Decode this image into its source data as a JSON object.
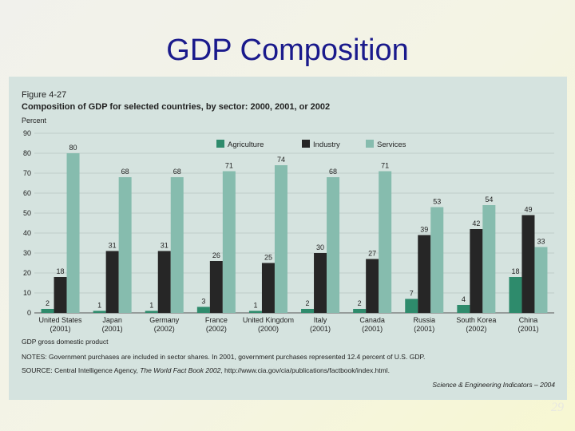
{
  "slide": {
    "title": "GDP Composition",
    "page_number": "29"
  },
  "figure": {
    "number": "Figure 4-27",
    "footnote_gdp": "GDP  gross domestic product",
    "notes": "NOTES: Government purchases are included in sector shares. In 2001, government purchases represented 12.4 percent of U.S. GDP.",
    "source_prefix": "SOURCE: Central Intelligence Agency, ",
    "source_title": "The World Fact Book 2002",
    "source_suffix": ", http://www.cia.gov/cia/publications/factbook/index.html.",
    "credit": "Science & Engineering Indicators – 2004"
  },
  "colors": {
    "agriculture": "#2e8b6c",
    "industry": "#262626",
    "services": "#86bcae",
    "title": "#1a1a8c",
    "panel": "#d5e3df"
  },
  "chart_data": {
    "type": "bar",
    "title": "Composition of GDP for selected countries, by sector: 2000, 2001, or 2002",
    "ylabel": "Percent",
    "xlabel": "",
    "ylim": [
      0,
      90
    ],
    "yticks": [
      0,
      10,
      20,
      30,
      40,
      50,
      60,
      70,
      80,
      90
    ],
    "grid": true,
    "legend_position": "top-right",
    "categories": [
      "United States",
      "Japan",
      "Germany",
      "France",
      "United Kingdom",
      "Italy",
      "Canada",
      "Russia",
      "South Korea",
      "China"
    ],
    "years": [
      "(2001)",
      "(2001)",
      "(2002)",
      "(2002)",
      "(2000)",
      "(2001)",
      "(2001)",
      "(2001)",
      "(2002)",
      "(2001)"
    ],
    "series": [
      {
        "name": "Agriculture",
        "values": [
          2,
          1,
          1,
          3,
          1,
          2,
          2,
          7,
          4,
          18
        ]
      },
      {
        "name": "Industry",
        "values": [
          18,
          31,
          31,
          26,
          25,
          30,
          27,
          39,
          42,
          49
        ]
      },
      {
        "name": "Services",
        "values": [
          80,
          68,
          68,
          71,
          74,
          68,
          71,
          53,
          54,
          33
        ]
      }
    ]
  }
}
